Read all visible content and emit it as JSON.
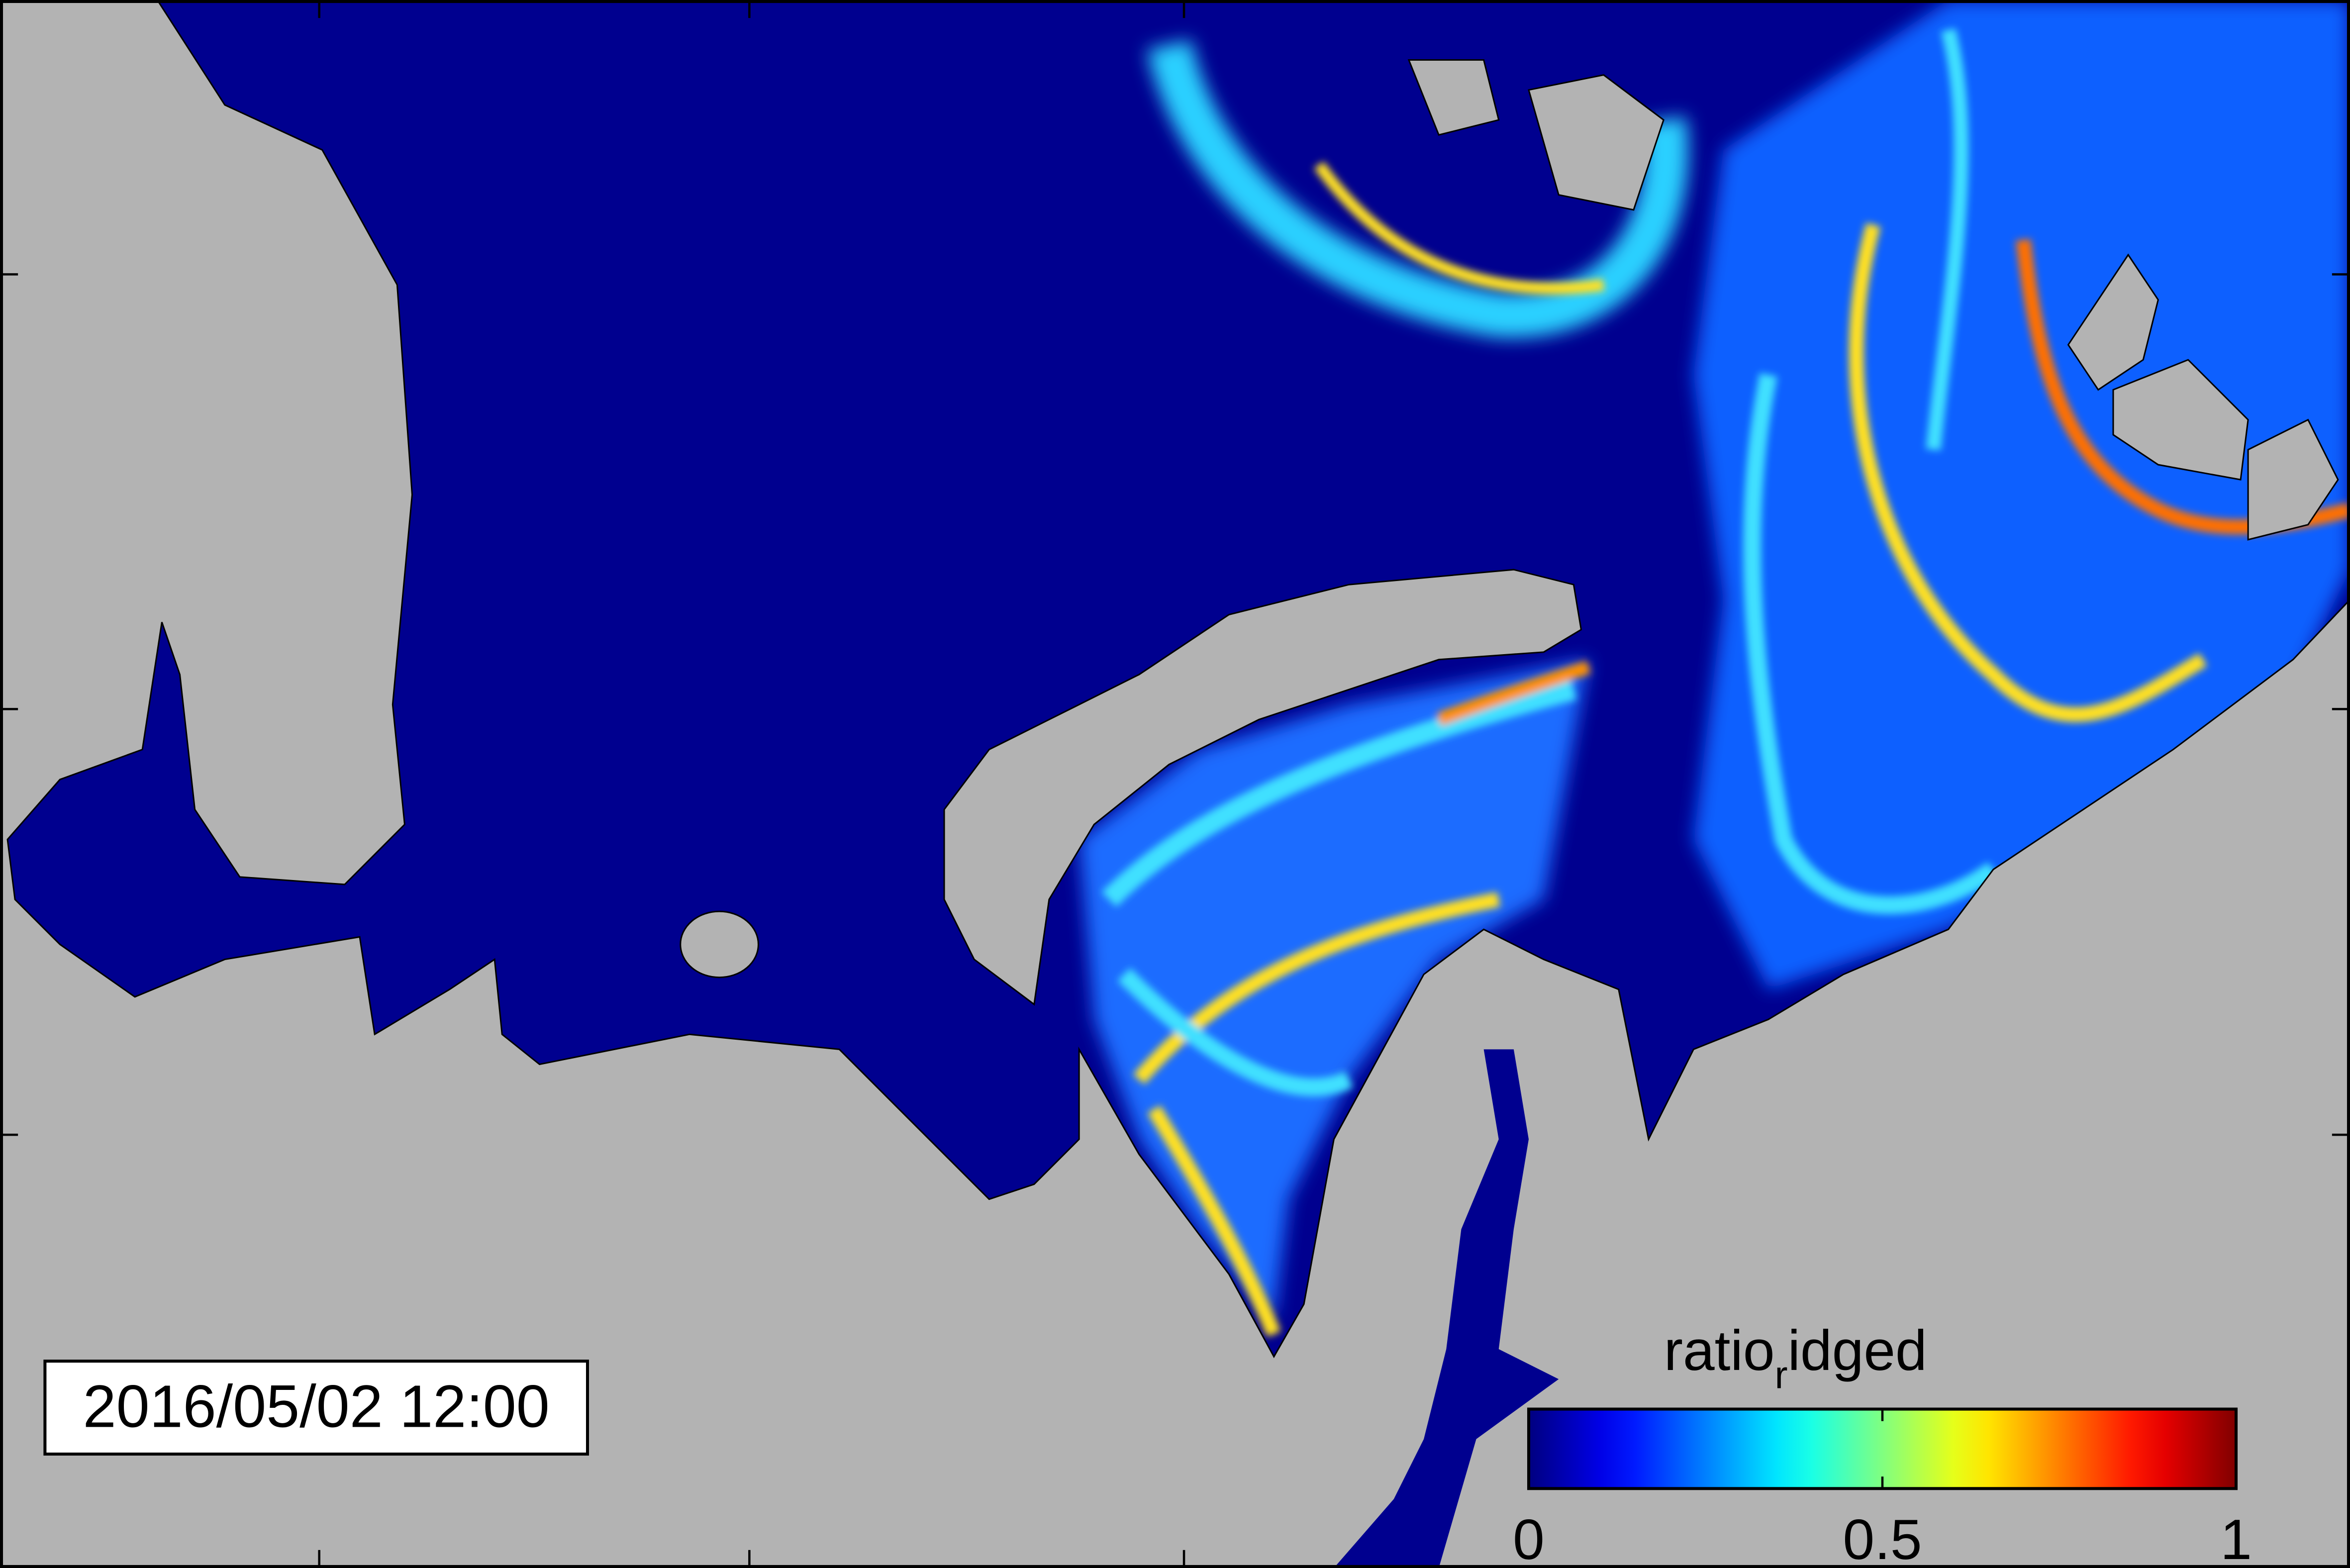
{
  "timestamp": "2016/05/02 12:00",
  "colorbar": {
    "title_parts": [
      "ratio",
      "r",
      "idged"
    ],
    "lim": [
      0,
      1
    ],
    "ticks": [
      0,
      0.5,
      1
    ],
    "colormap": "jet"
  }
}
